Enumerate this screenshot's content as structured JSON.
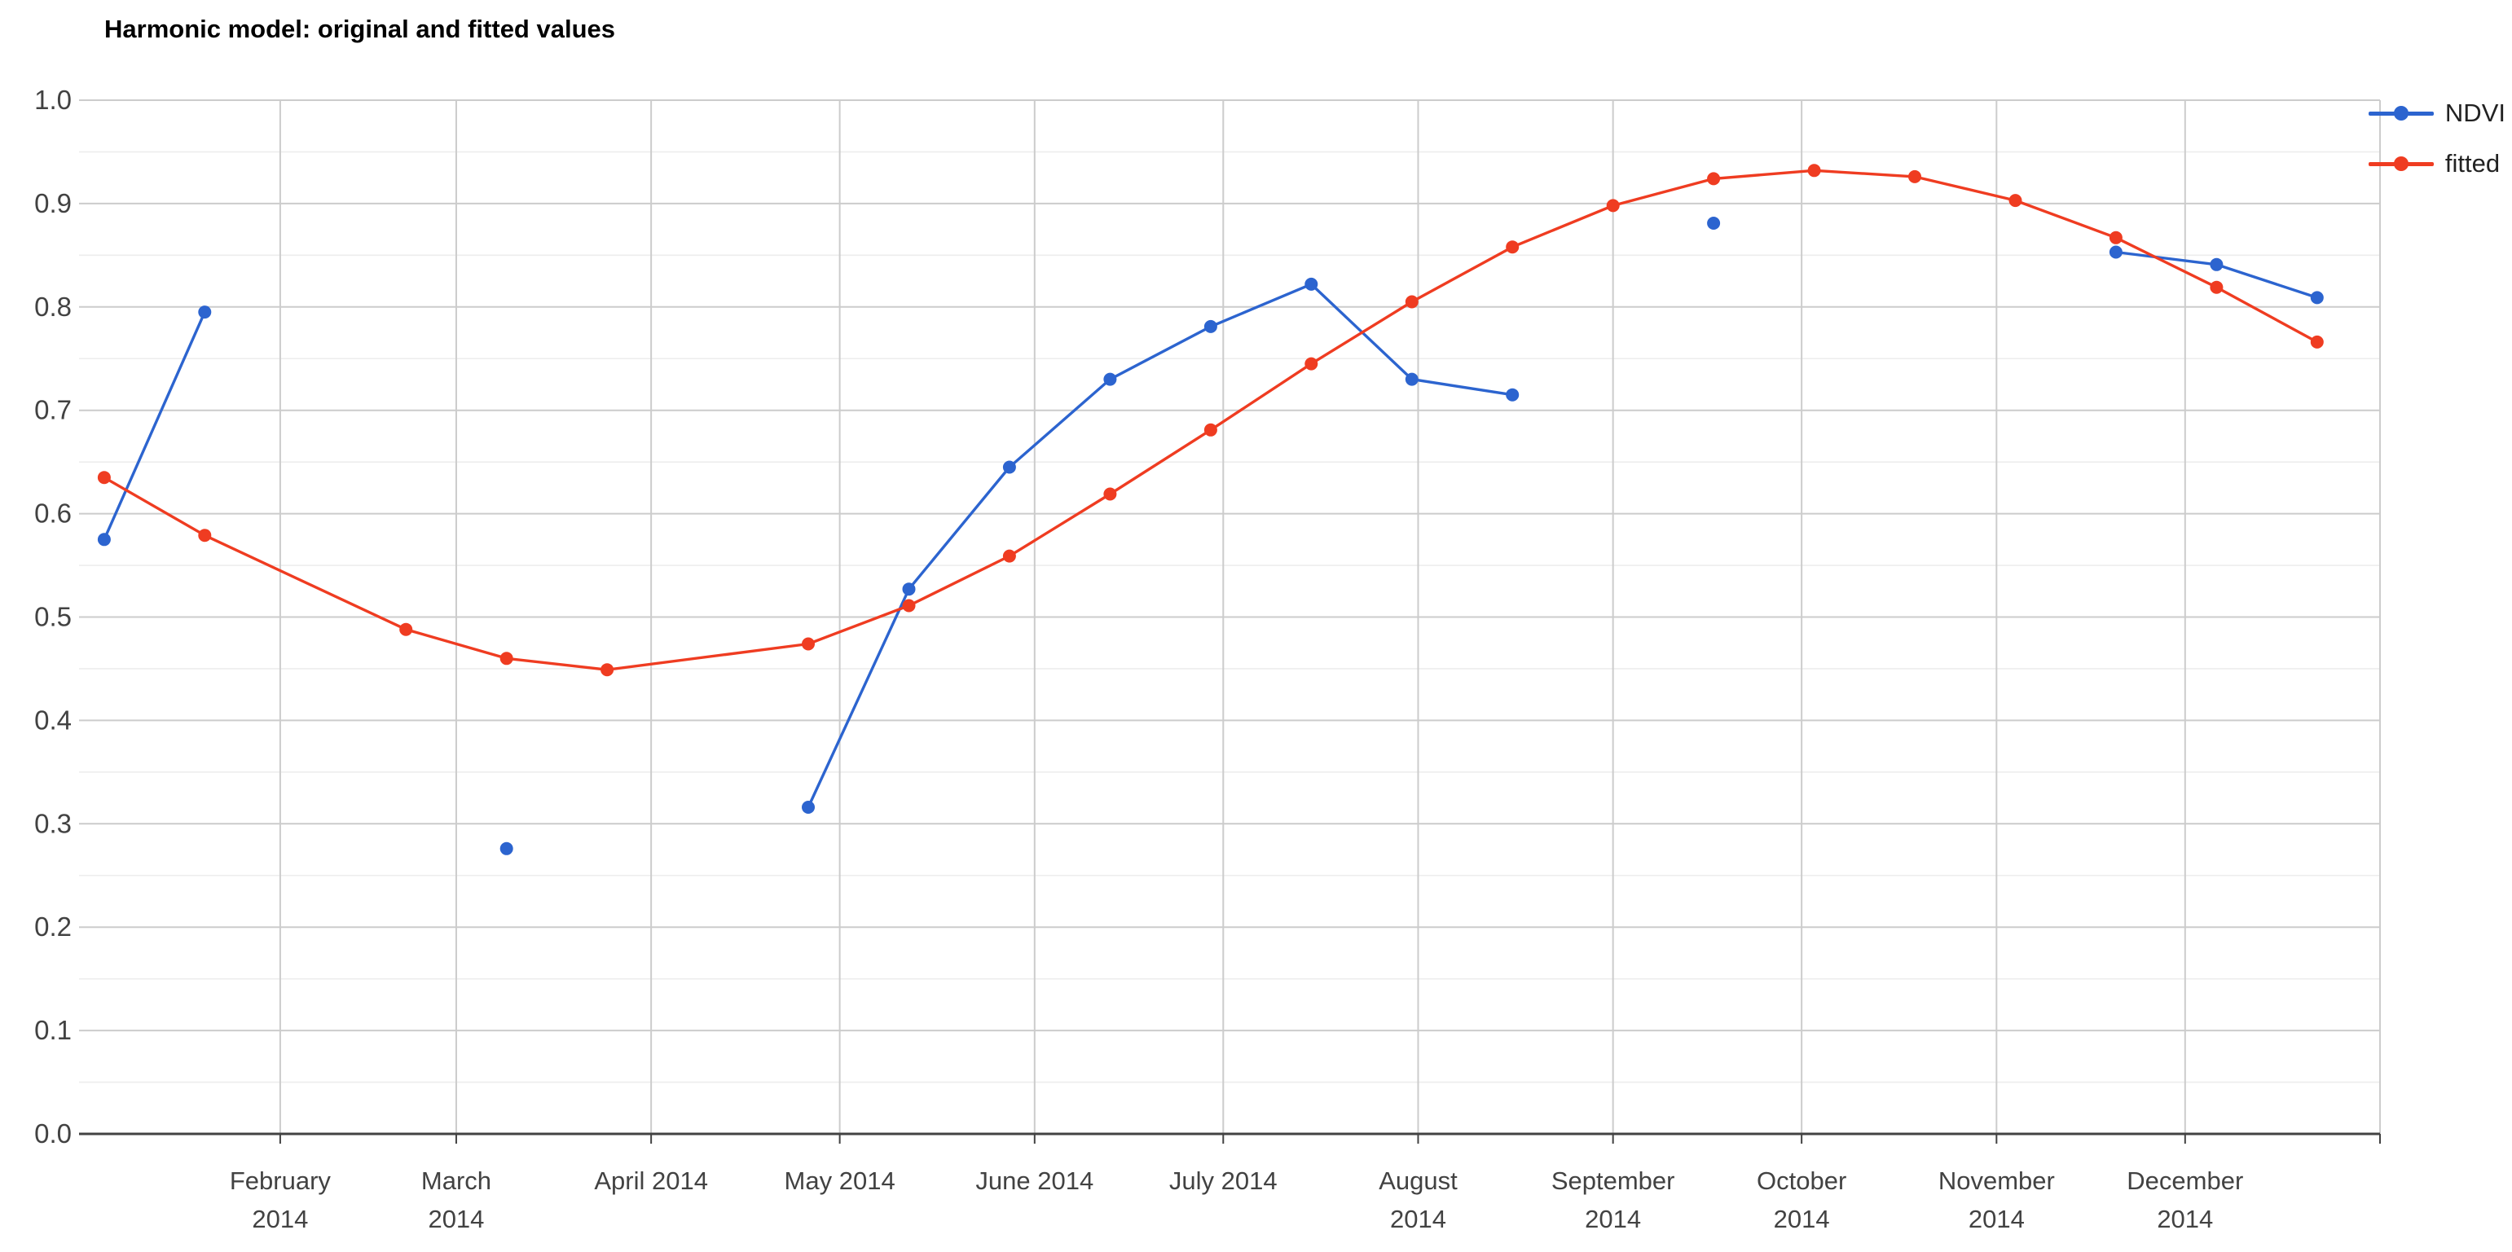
{
  "title": {
    "text": "Harmonic model: original and fitted values"
  },
  "legend": {
    "position": "right",
    "items": [
      {
        "label": "NDVI",
        "color": "#2c64cf"
      },
      {
        "label": "fitted",
        "color": "#ef3c21"
      }
    ]
  },
  "chart_data": {
    "type": "line",
    "title": "Harmonic model: original and fitted values",
    "xlabel": "",
    "ylabel": "",
    "x_unit": "day_of_year_2014",
    "x": [
      4,
      20,
      52,
      68,
      84,
      116,
      132,
      148,
      164,
      180,
      196,
      212,
      228,
      244,
      260,
      276,
      292,
      308,
      324,
      340,
      356
    ],
    "series": [
      {
        "name": "NDVI",
        "color": "#2c64cf",
        "values": [
          0.575,
          0.795,
          null,
          0.276,
          null,
          0.316,
          0.527,
          0.645,
          0.73,
          0.781,
          0.822,
          0.73,
          0.715,
          null,
          0.881,
          null,
          null,
          null,
          0.853,
          0.841,
          0.809
        ]
      },
      {
        "name": "fitted",
        "color": "#ef3c21",
        "values": [
          0.635,
          0.579,
          0.488,
          0.46,
          0.449,
          0.474,
          0.511,
          0.559,
          0.619,
          0.681,
          0.745,
          0.805,
          0.858,
          0.898,
          0.924,
          0.932,
          0.926,
          0.903,
          0.867,
          0.819,
          0.766
        ]
      }
    ],
    "ylim": [
      0.0,
      1.0
    ],
    "y_tick_step": 0.1,
    "y_minor_step": 0.05,
    "grid": true,
    "legend_position": "right",
    "interpolate_nulls": false,
    "y_ticks": [
      {
        "label": "0.0",
        "value": 0.0
      },
      {
        "label": "0.1",
        "value": 0.1
      },
      {
        "label": "0.2",
        "value": 0.2
      },
      {
        "label": "0.3",
        "value": 0.3
      },
      {
        "label": "0.4",
        "value": 0.4
      },
      {
        "label": "0.5",
        "value": 0.5
      },
      {
        "label": "0.6",
        "value": 0.6
      },
      {
        "label": "0.7",
        "value": 0.7
      },
      {
        "label": "0.8",
        "value": 0.8
      },
      {
        "label": "0.9",
        "value": 0.9
      },
      {
        "label": "1.0",
        "value": 1.0
      }
    ],
    "x_ticks": [
      {
        "line1": "February",
        "line2": "2014",
        "day": 32
      },
      {
        "line1": "March",
        "line2": "2014",
        "day": 60
      },
      {
        "line1": "April 2014",
        "line2": "",
        "day": 91
      },
      {
        "line1": "May 2014",
        "line2": "",
        "day": 121
      },
      {
        "line1": "June 2014",
        "line2": "",
        "day": 152
      },
      {
        "line1": "July 2014",
        "line2": "",
        "day": 182
      },
      {
        "line1": "August",
        "line2": "2014",
        "day": 213
      },
      {
        "line1": "September",
        "line2": "2014",
        "day": 244
      },
      {
        "line1": "October",
        "line2": "2014",
        "day": 274
      },
      {
        "line1": "November",
        "line2": "2014",
        "day": 305
      },
      {
        "line1": "December",
        "line2": "2014",
        "day": 335
      }
    ]
  },
  "colors": {
    "background": "#ffffff",
    "grid_major": "#cccccc",
    "grid_minor": "#ededed",
    "axis_line": "#424242",
    "tick_label": "#424242",
    "title_text": "#000000",
    "legend_text": "#222222"
  }
}
